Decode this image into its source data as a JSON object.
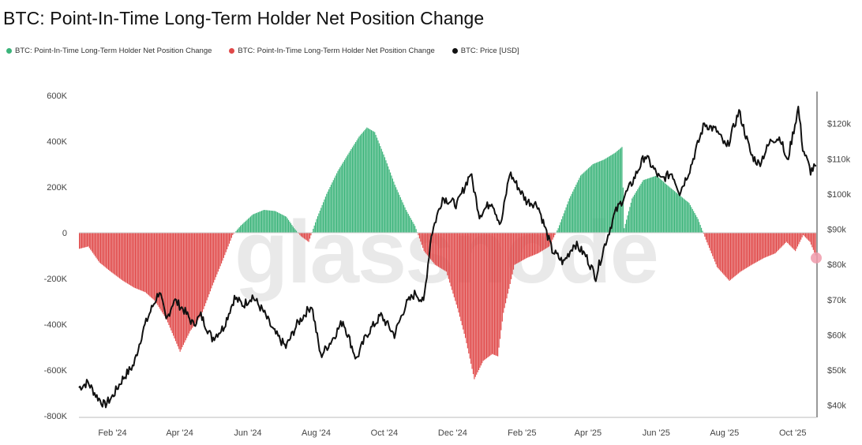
{
  "title": "BTC: Point-In-Time Long-Term Holder Net Position Change",
  "watermark": "glassnode",
  "legend": [
    {
      "label": "BTC: Point-In-Time Long-Term Holder Net Position Change",
      "color": "#3bb47a"
    },
    {
      "label": "BTC: Point-In-Time Long-Term Holder Net Position Change",
      "color": "#e04848"
    },
    {
      "label": "BTC: Price [USD]",
      "color": "#111111"
    }
  ],
  "chart_data": {
    "type": "bar",
    "x_ticks": [
      "Feb '24",
      "Apr '24",
      "Jun '24",
      "Aug '24",
      "Oct '24",
      "Dec '24",
      "Feb '25",
      "Apr '25",
      "Jun '25",
      "Aug '25",
      "Oct '25"
    ],
    "y_left": {
      "ticks": [
        "600K",
        "400K",
        "200K",
        "0",
        "-200K",
        "-400K",
        "-600K",
        "-800K"
      ],
      "ylim": [
        -800000,
        600000
      ]
    },
    "y_right": {
      "ticks": [
        "$120k",
        "$110k",
        "$100k",
        "$90k",
        "$80k",
        "$70k",
        "$60k",
        "$50k",
        "$40k"
      ],
      "ylim": [
        37000,
        128000
      ],
      "unit": "USD"
    },
    "x_range": [
      "2024-01-02",
      "2025-10-22"
    ],
    "series": [
      {
        "name": "BTC: Point-In-Time Long-Term Holder Net Position Change",
        "kind": "bar",
        "color_positive": "#3bb47a",
        "color_negative": "#e04848",
        "points": [
          [
            "2024-01-02",
            -70000
          ],
          [
            "2024-01-10",
            -60000
          ],
          [
            "2024-01-20",
            -130000
          ],
          [
            "2024-01-30",
            -170000
          ],
          [
            "2024-02-10",
            -210000
          ],
          [
            "2024-02-20",
            -240000
          ],
          [
            "2024-03-01",
            -260000
          ],
          [
            "2024-03-10",
            -300000
          ],
          [
            "2024-03-20",
            -380000
          ],
          [
            "2024-04-01",
            -520000
          ],
          [
            "2024-04-10",
            -430000
          ],
          [
            "2024-04-20",
            -360000
          ],
          [
            "2024-04-30",
            -230000
          ],
          [
            "2024-05-10",
            -110000
          ],
          [
            "2024-05-18",
            -10000
          ],
          [
            "2024-05-25",
            30000
          ],
          [
            "2024-06-05",
            80000
          ],
          [
            "2024-06-15",
            100000
          ],
          [
            "2024-06-25",
            95000
          ],
          [
            "2024-07-05",
            70000
          ],
          [
            "2024-07-12",
            20000
          ],
          [
            "2024-07-18",
            -15000
          ],
          [
            "2024-07-25",
            -40000
          ],
          [
            "2024-08-01",
            60000
          ],
          [
            "2024-08-10",
            170000
          ],
          [
            "2024-08-20",
            270000
          ],
          [
            "2024-08-30",
            350000
          ],
          [
            "2024-09-08",
            420000
          ],
          [
            "2024-09-15",
            460000
          ],
          [
            "2024-09-22",
            440000
          ],
          [
            "2024-10-01",
            330000
          ],
          [
            "2024-10-10",
            210000
          ],
          [
            "2024-10-20",
            100000
          ],
          [
            "2024-10-28",
            30000
          ],
          [
            "2024-11-05",
            -80000
          ],
          [
            "2024-11-15",
            -140000
          ],
          [
            "2024-11-25",
            -170000
          ],
          [
            "2024-12-05",
            -330000
          ],
          [
            "2024-12-12",
            -460000
          ],
          [
            "2024-12-20",
            -640000
          ],
          [
            "2024-12-28",
            -560000
          ],
          [
            "2025-01-05",
            -530000
          ],
          [
            "2025-01-10",
            -540000
          ],
          [
            "2025-01-15",
            -350000
          ],
          [
            "2025-01-25",
            -140000
          ],
          [
            "2025-02-05",
            -110000
          ],
          [
            "2025-02-15",
            -90000
          ],
          [
            "2025-02-25",
            -60000
          ],
          [
            "2025-03-05",
            20000
          ],
          [
            "2025-03-15",
            150000
          ],
          [
            "2025-03-25",
            250000
          ],
          [
            "2025-04-05",
            300000
          ],
          [
            "2025-04-15",
            320000
          ],
          [
            "2025-04-25",
            350000
          ],
          [
            "2025-05-01",
            375000
          ],
          [
            "2025-05-03",
            20000
          ],
          [
            "2025-05-10",
            150000
          ],
          [
            "2025-05-20",
            230000
          ],
          [
            "2025-06-01",
            250000
          ],
          [
            "2025-06-10",
            210000
          ],
          [
            "2025-06-20",
            170000
          ],
          [
            "2025-06-30",
            130000
          ],
          [
            "2025-07-08",
            60000
          ],
          [
            "2025-07-15",
            -30000
          ],
          [
            "2025-07-25",
            -150000
          ],
          [
            "2025-08-05",
            -210000
          ],
          [
            "2025-08-15",
            -170000
          ],
          [
            "2025-08-25",
            -140000
          ],
          [
            "2025-09-05",
            -110000
          ],
          [
            "2025-09-15",
            -90000
          ],
          [
            "2025-09-25",
            -40000
          ],
          [
            "2025-10-03",
            -80000
          ],
          [
            "2025-10-10",
            -10000
          ],
          [
            "2025-10-16",
            -40000
          ],
          [
            "2025-10-22",
            -110000
          ]
        ]
      },
      {
        "name": "BTC: Price [USD]",
        "kind": "line",
        "color": "#111111",
        "points": [
          [
            "2024-01-02",
            45000
          ],
          [
            "2024-01-10",
            46500
          ],
          [
            "2024-01-18",
            42500
          ],
          [
            "2024-01-25",
            40000
          ],
          [
            "2024-02-01",
            42500
          ],
          [
            "2024-02-10",
            47500
          ],
          [
            "2024-02-20",
            51500
          ],
          [
            "2024-02-28",
            61000
          ],
          [
            "2024-03-05",
            66000
          ],
          [
            "2024-03-14",
            72500
          ],
          [
            "2024-03-20",
            64000
          ],
          [
            "2024-03-27",
            70000
          ],
          [
            "2024-04-05",
            67000
          ],
          [
            "2024-04-13",
            63000
          ],
          [
            "2024-04-20",
            65500
          ],
          [
            "2024-04-30",
            59000
          ],
          [
            "2024-05-10",
            62000
          ],
          [
            "2024-05-20",
            70500
          ],
          [
            "2024-05-28",
            68500
          ],
          [
            "2024-06-05",
            71000
          ],
          [
            "2024-06-15",
            66500
          ],
          [
            "2024-06-24",
            61000
          ],
          [
            "2024-07-05",
            56500
          ],
          [
            "2024-07-15",
            63000
          ],
          [
            "2024-07-28",
            68500
          ],
          [
            "2024-08-05",
            54000
          ],
          [
            "2024-08-15",
            58500
          ],
          [
            "2024-08-25",
            64000
          ],
          [
            "2024-09-06",
            53000
          ],
          [
            "2024-09-15",
            60000
          ],
          [
            "2024-09-28",
            65500
          ],
          [
            "2024-10-10",
            60000
          ],
          [
            "2024-10-20",
            68500
          ],
          [
            "2024-10-29",
            72000
          ],
          [
            "2024-11-05",
            69000
          ],
          [
            "2024-11-12",
            88500
          ],
          [
            "2024-11-22",
            99000
          ],
          [
            "2024-12-05",
            97000
          ],
          [
            "2024-12-17",
            106000
          ],
          [
            "2024-12-25",
            94000
          ],
          [
            "2025-01-05",
            98000
          ],
          [
            "2025-01-13",
            91000
          ],
          [
            "2025-01-21",
            106000
          ],
          [
            "2025-02-05",
            98000
          ],
          [
            "2025-02-15",
            97000
          ],
          [
            "2025-02-28",
            84000
          ],
          [
            "2025-03-10",
            80500
          ],
          [
            "2025-03-20",
            86000
          ],
          [
            "2025-03-30",
            82500
          ],
          [
            "2025-04-08",
            76500
          ],
          [
            "2025-04-15",
            84500
          ],
          [
            "2025-04-25",
            94500
          ],
          [
            "2025-05-10",
            103000
          ],
          [
            "2025-05-22",
            111000
          ],
          [
            "2025-06-05",
            104000
          ],
          [
            "2025-06-15",
            106000
          ],
          [
            "2025-06-22",
            100500
          ],
          [
            "2025-07-01",
            107000
          ],
          [
            "2025-07-14",
            120000
          ],
          [
            "2025-07-25",
            118000
          ],
          [
            "2025-08-03",
            113000
          ],
          [
            "2025-08-14",
            123500
          ],
          [
            "2025-08-25",
            111000
          ],
          [
            "2025-09-01",
            108500
          ],
          [
            "2025-09-12",
            115500
          ],
          [
            "2025-09-20",
            116000
          ],
          [
            "2025-09-26",
            109000
          ],
          [
            "2025-10-06",
            124500
          ],
          [
            "2025-10-10",
            113000
          ],
          [
            "2025-10-17",
            106500
          ],
          [
            "2025-10-22",
            108000
          ]
        ]
      }
    ],
    "highlight_marker": {
      "date": "2025-10-22",
      "value": -110000,
      "color": "#f09aaa"
    },
    "grid": false,
    "legend_position": "top-left"
  }
}
